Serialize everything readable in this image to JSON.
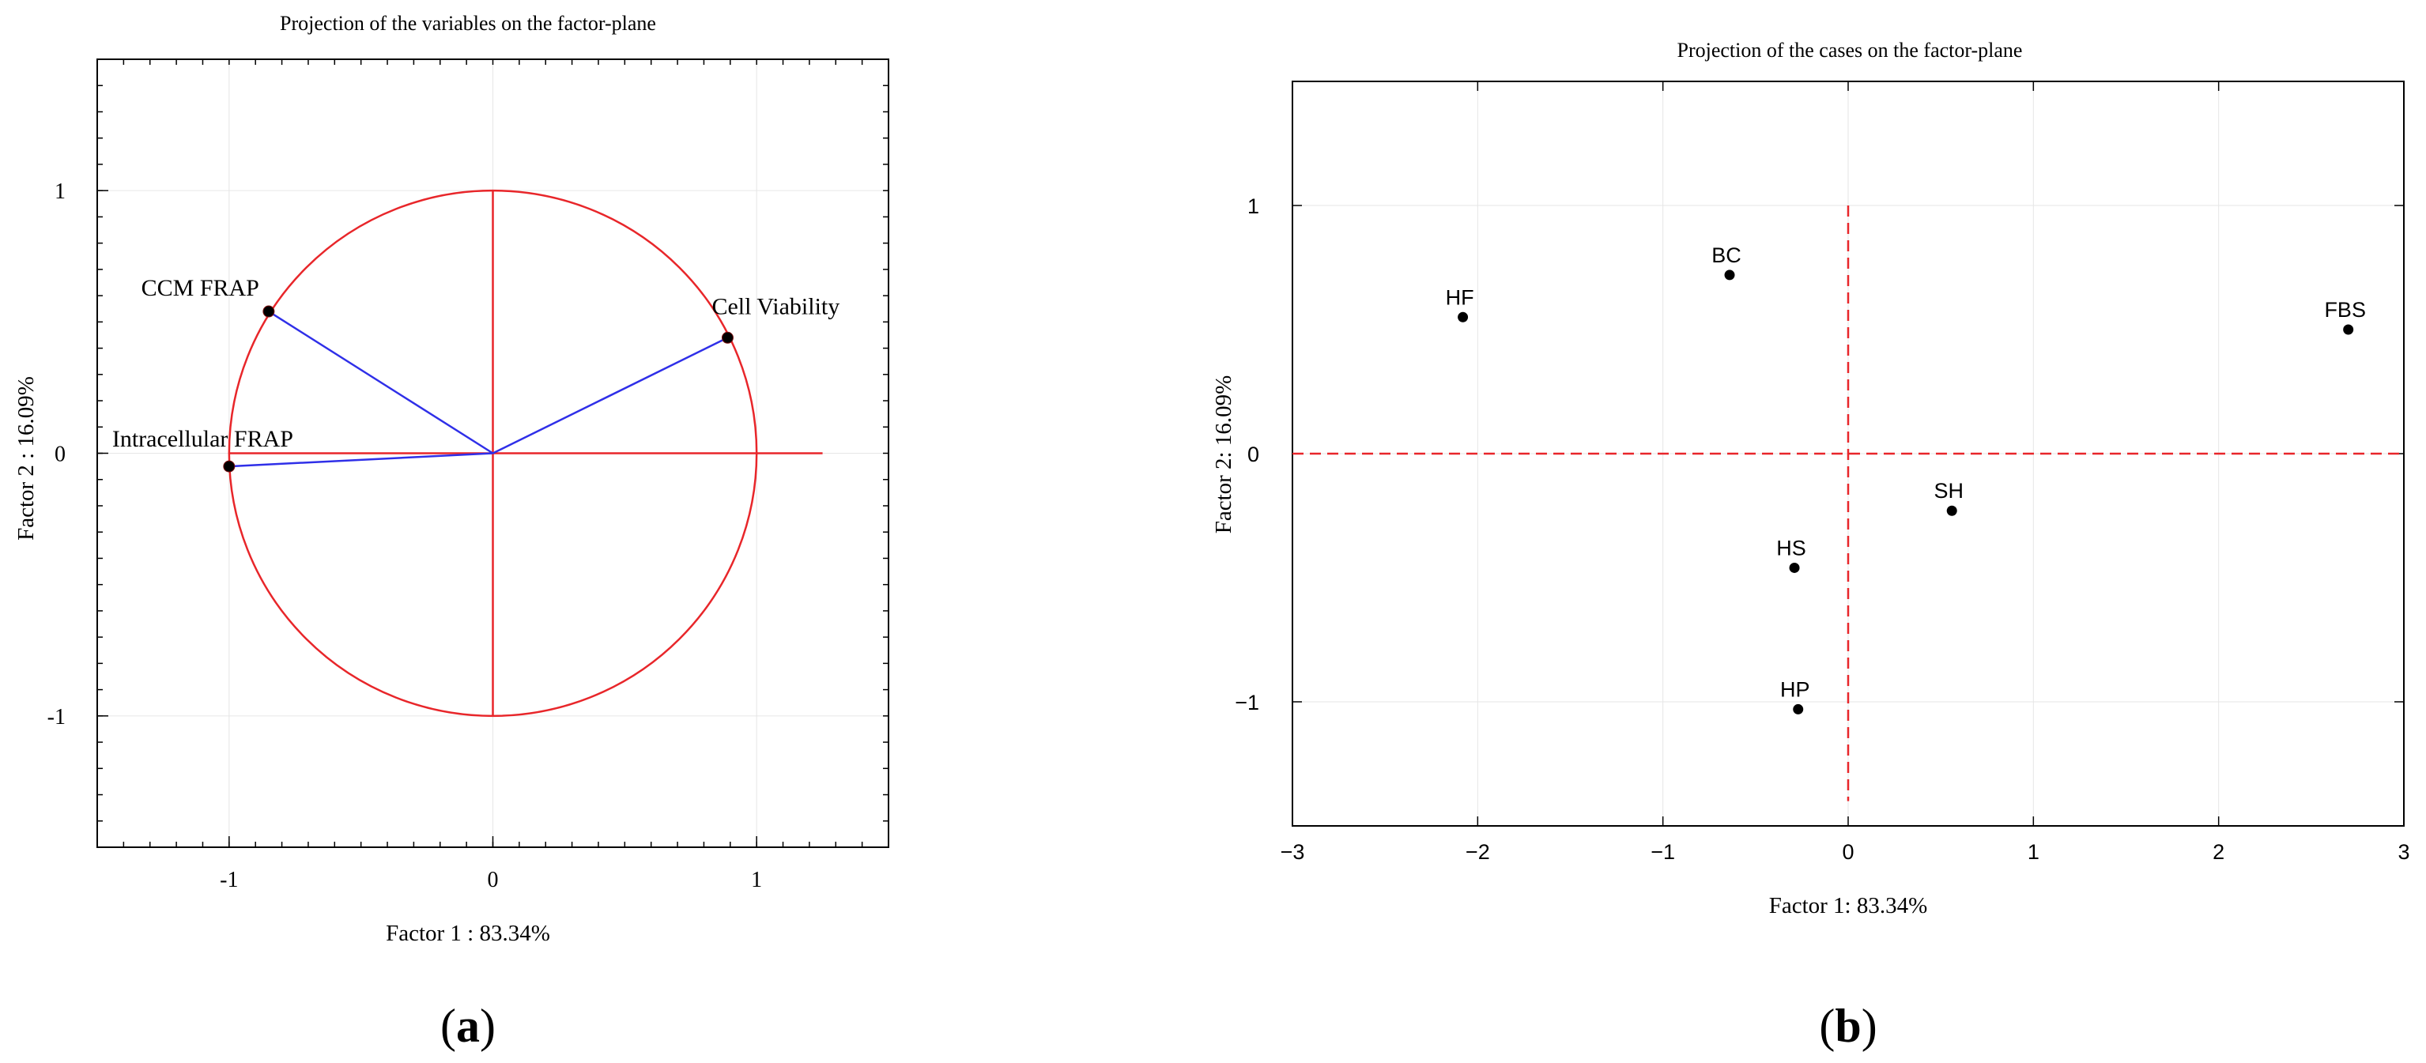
{
  "chart_data": [
    {
      "type": "scatter",
      "panel": "(a)",
      "title": "Projection of the variables on the factor-plane",
      "xlabel": "Factor 1 : 83.34%",
      "ylabel": "Factor 2 : 16.09%",
      "xlim": [
        -1.5,
        1.5
      ],
      "ylim": [
        -1.5,
        1.5
      ],
      "xticks": [
        -1,
        0,
        1
      ],
      "yticks": [
        1,
        0,
        -1
      ],
      "xtick_labels": [
        "-1",
        "0",
        "1"
      ],
      "ytick_labels": [
        "1",
        "0",
        "-1"
      ],
      "grid": true,
      "unit_circle": true,
      "points": [
        {
          "label": "Cell Viability",
          "x": 0.89,
          "y": 0.44
        },
        {
          "label": "CCM FRAP",
          "x": -0.85,
          "y": 0.54
        },
        {
          "label": "Intracellular FRAP",
          "x": -1.0,
          "y": -0.05
        }
      ],
      "colors": {
        "circle": "#e8262a",
        "vectors": "#2f2fe8",
        "points": "#000000"
      }
    },
    {
      "type": "scatter",
      "panel": "(b)",
      "title": "Projection of the cases on the factor-plane",
      "xlabel": "Factor 1: 83.34%",
      "ylabel": "Factor 2: 16.09%",
      "xlim": [
        -3,
        3
      ],
      "ylim": [
        -1.5,
        1.5
      ],
      "xticks": [
        -3,
        -2,
        -1,
        0,
        1,
        2,
        3
      ],
      "yticks": [
        1,
        0,
        -1
      ],
      "xtick_labels": [
        "−3",
        "−2",
        "−1",
        "0",
        "1",
        "2",
        "3"
      ],
      "ytick_labels": [
        "1",
        "0",
        "−1"
      ],
      "grid": true,
      "reference_lines": "dashed",
      "points": [
        {
          "label": "HF",
          "x": -2.08,
          "y": 0.55
        },
        {
          "label": "BC",
          "x": -0.64,
          "y": 0.72
        },
        {
          "label": "FBS",
          "x": 2.7,
          "y": 0.5
        },
        {
          "label": "SH",
          "x": 0.56,
          "y": -0.23
        },
        {
          "label": "HS",
          "x": -0.29,
          "y": -0.46
        },
        {
          "label": "HP",
          "x": -0.27,
          "y": -1.03
        }
      ],
      "colors": {
        "reference": "#e8262a",
        "points": "#000000"
      }
    }
  ],
  "panel_labels": {
    "a": {
      "open": "(",
      "letter": "a",
      "close": ")"
    },
    "b": {
      "open": "(",
      "letter": "b",
      "close": ")"
    }
  }
}
